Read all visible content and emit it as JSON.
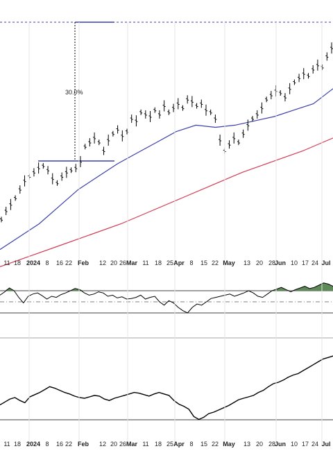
{
  "chart_data": [
    {
      "type": "ohlc",
      "annotations": {
        "percent_move": "30.0%"
      },
      "x_tick_labels": [
        "11",
        "18",
        "2024",
        "8",
        "16",
        "22",
        "Feb",
        "12",
        "20",
        "26",
        "Mar",
        "11",
        "18",
        "25",
        "Apr",
        "8",
        "15",
        "22",
        "May",
        "13",
        "20",
        "28",
        "Jun",
        "10",
        "17",
        "24",
        "Jul"
      ],
      "bold_tick_labels": [
        "2024",
        "Feb",
        "Mar",
        "Apr",
        "May",
        "Jun",
        "Jul"
      ],
      "series": [
        {
          "kind": "price-bars",
          "color": "#000000",
          "values": [
            8,
            12,
            15,
            18,
            22,
            26,
            28,
            30,
            32,
            33,
            31,
            27,
            25,
            28,
            30,
            31,
            32,
            35,
            42,
            44,
            46,
            44,
            40,
            45,
            48,
            50,
            47,
            49,
            55,
            54,
            58,
            57,
            56,
            59,
            57,
            61,
            58,
            60,
            62,
            60,
            64,
            63,
            61,
            62,
            59,
            58,
            55,
            45,
            40,
            43,
            46,
            44,
            48,
            52,
            55,
            57,
            60,
            64,
            66,
            68,
            67,
            65,
            69,
            72,
            74,
            76,
            75,
            78,
            80,
            79,
            84,
            88
          ]
        },
        {
          "kind": "moving-average",
          "color": "#3a3fa8",
          "values": [
            0,
            6,
            12,
            20,
            28,
            34,
            40,
            45,
            50,
            55,
            58,
            57,
            58,
            60,
            62,
            65,
            68,
            75
          ]
        },
        {
          "kind": "moving-average",
          "color": "#d33a55",
          "values": [
            0,
            5,
            10,
            15,
            20,
            26,
            32,
            38,
            44,
            49,
            54,
            60
          ]
        }
      ]
    },
    {
      "type": "line",
      "panel": "indicator-1",
      "bands": {
        "upper": 70,
        "mid": 50,
        "lower": 30
      },
      "fill_above": "#5d8a57",
      "values": [
        62,
        68,
        75,
        70,
        58,
        48,
        60,
        64,
        66,
        61,
        55,
        60,
        58,
        63,
        66,
        70,
        74,
        72,
        66,
        62,
        64,
        68,
        66,
        60,
        62,
        57,
        59,
        55,
        56,
        58,
        62,
        55,
        58,
        60,
        50,
        44,
        52,
        48,
        40,
        34,
        30,
        40,
        46,
        44,
        50,
        56,
        58,
        60,
        62,
        64,
        60,
        63,
        66,
        70,
        66,
        60,
        58,
        64,
        70,
        73,
        76,
        72,
        68,
        72,
        75,
        78,
        74,
        76,
        80,
        84,
        82,
        78
      ]
    },
    {
      "type": "line",
      "panel": "indicator-2",
      "values": [
        30,
        34,
        38,
        40,
        36,
        33,
        41,
        44,
        47,
        51,
        55,
        53,
        50,
        47,
        45,
        42,
        40,
        39,
        41,
        43,
        42,
        38,
        36,
        39,
        41,
        43,
        45,
        47,
        46,
        44,
        42,
        45,
        47,
        45,
        43,
        36,
        31,
        28,
        24,
        14,
        10,
        13,
        18,
        20,
        23,
        26,
        29,
        33,
        37,
        39,
        41,
        43,
        47,
        50,
        55,
        59,
        61,
        64,
        68,
        71,
        73,
        77,
        81,
        85,
        89,
        93,
        95,
        97
      ]
    }
  ]
}
